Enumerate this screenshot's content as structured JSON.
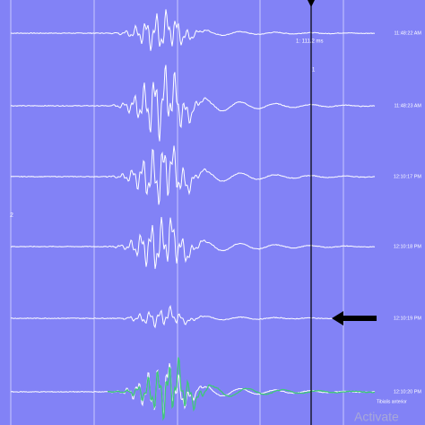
{
  "traces": [
    {
      "time": "11:48:22 AM"
    },
    {
      "time": "11:48:23 AM"
    },
    {
      "time": "12:10:17 PM"
    },
    {
      "time": "12:10:18 PM"
    },
    {
      "time": "12:10:19 PM"
    },
    {
      "time": "12:10:20 PM"
    }
  ],
  "cursor": {
    "label": "1: 111.2 ms",
    "marker": "1"
  },
  "marker_left": "2",
  "channel": "Tibialis anterior",
  "watermark": "Activate"
}
